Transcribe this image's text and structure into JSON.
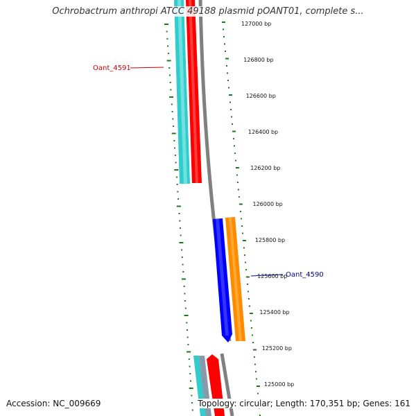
{
  "title": "Ochrobactrum anthropi ATCC 49188 plasmid pOANT01, complete s...",
  "accession": "Accession: NC_009669",
  "summary": "Topology: circular; Length: 170,351 bp; Genes: 161",
  "ticks": [
    {
      "label": "127000 bp"
    },
    {
      "label": "126800 bp"
    },
    {
      "label": "126600 bp"
    },
    {
      "label": "126400 bp"
    },
    {
      "label": "126200 bp"
    },
    {
      "label": "126000 bp"
    },
    {
      "label": "125800 bp"
    },
    {
      "label": "125600 bp"
    },
    {
      "label": "125400 bp"
    },
    {
      "label": "125200 bp"
    },
    {
      "label": "125000 bp"
    }
  ],
  "gene_labels": [
    {
      "text": "Oant_4591",
      "color": "#cc0000"
    },
    {
      "text": "Oant_4590",
      "color": "#000099"
    }
  ],
  "colors": {
    "backbone": "#808080",
    "tick": "#1a7a1a",
    "cyan": "#33cccc",
    "red": "#ff0000",
    "blue": "#0000ff",
    "orange": "#ff8c00",
    "gray_feature": "#8899aa"
  }
}
